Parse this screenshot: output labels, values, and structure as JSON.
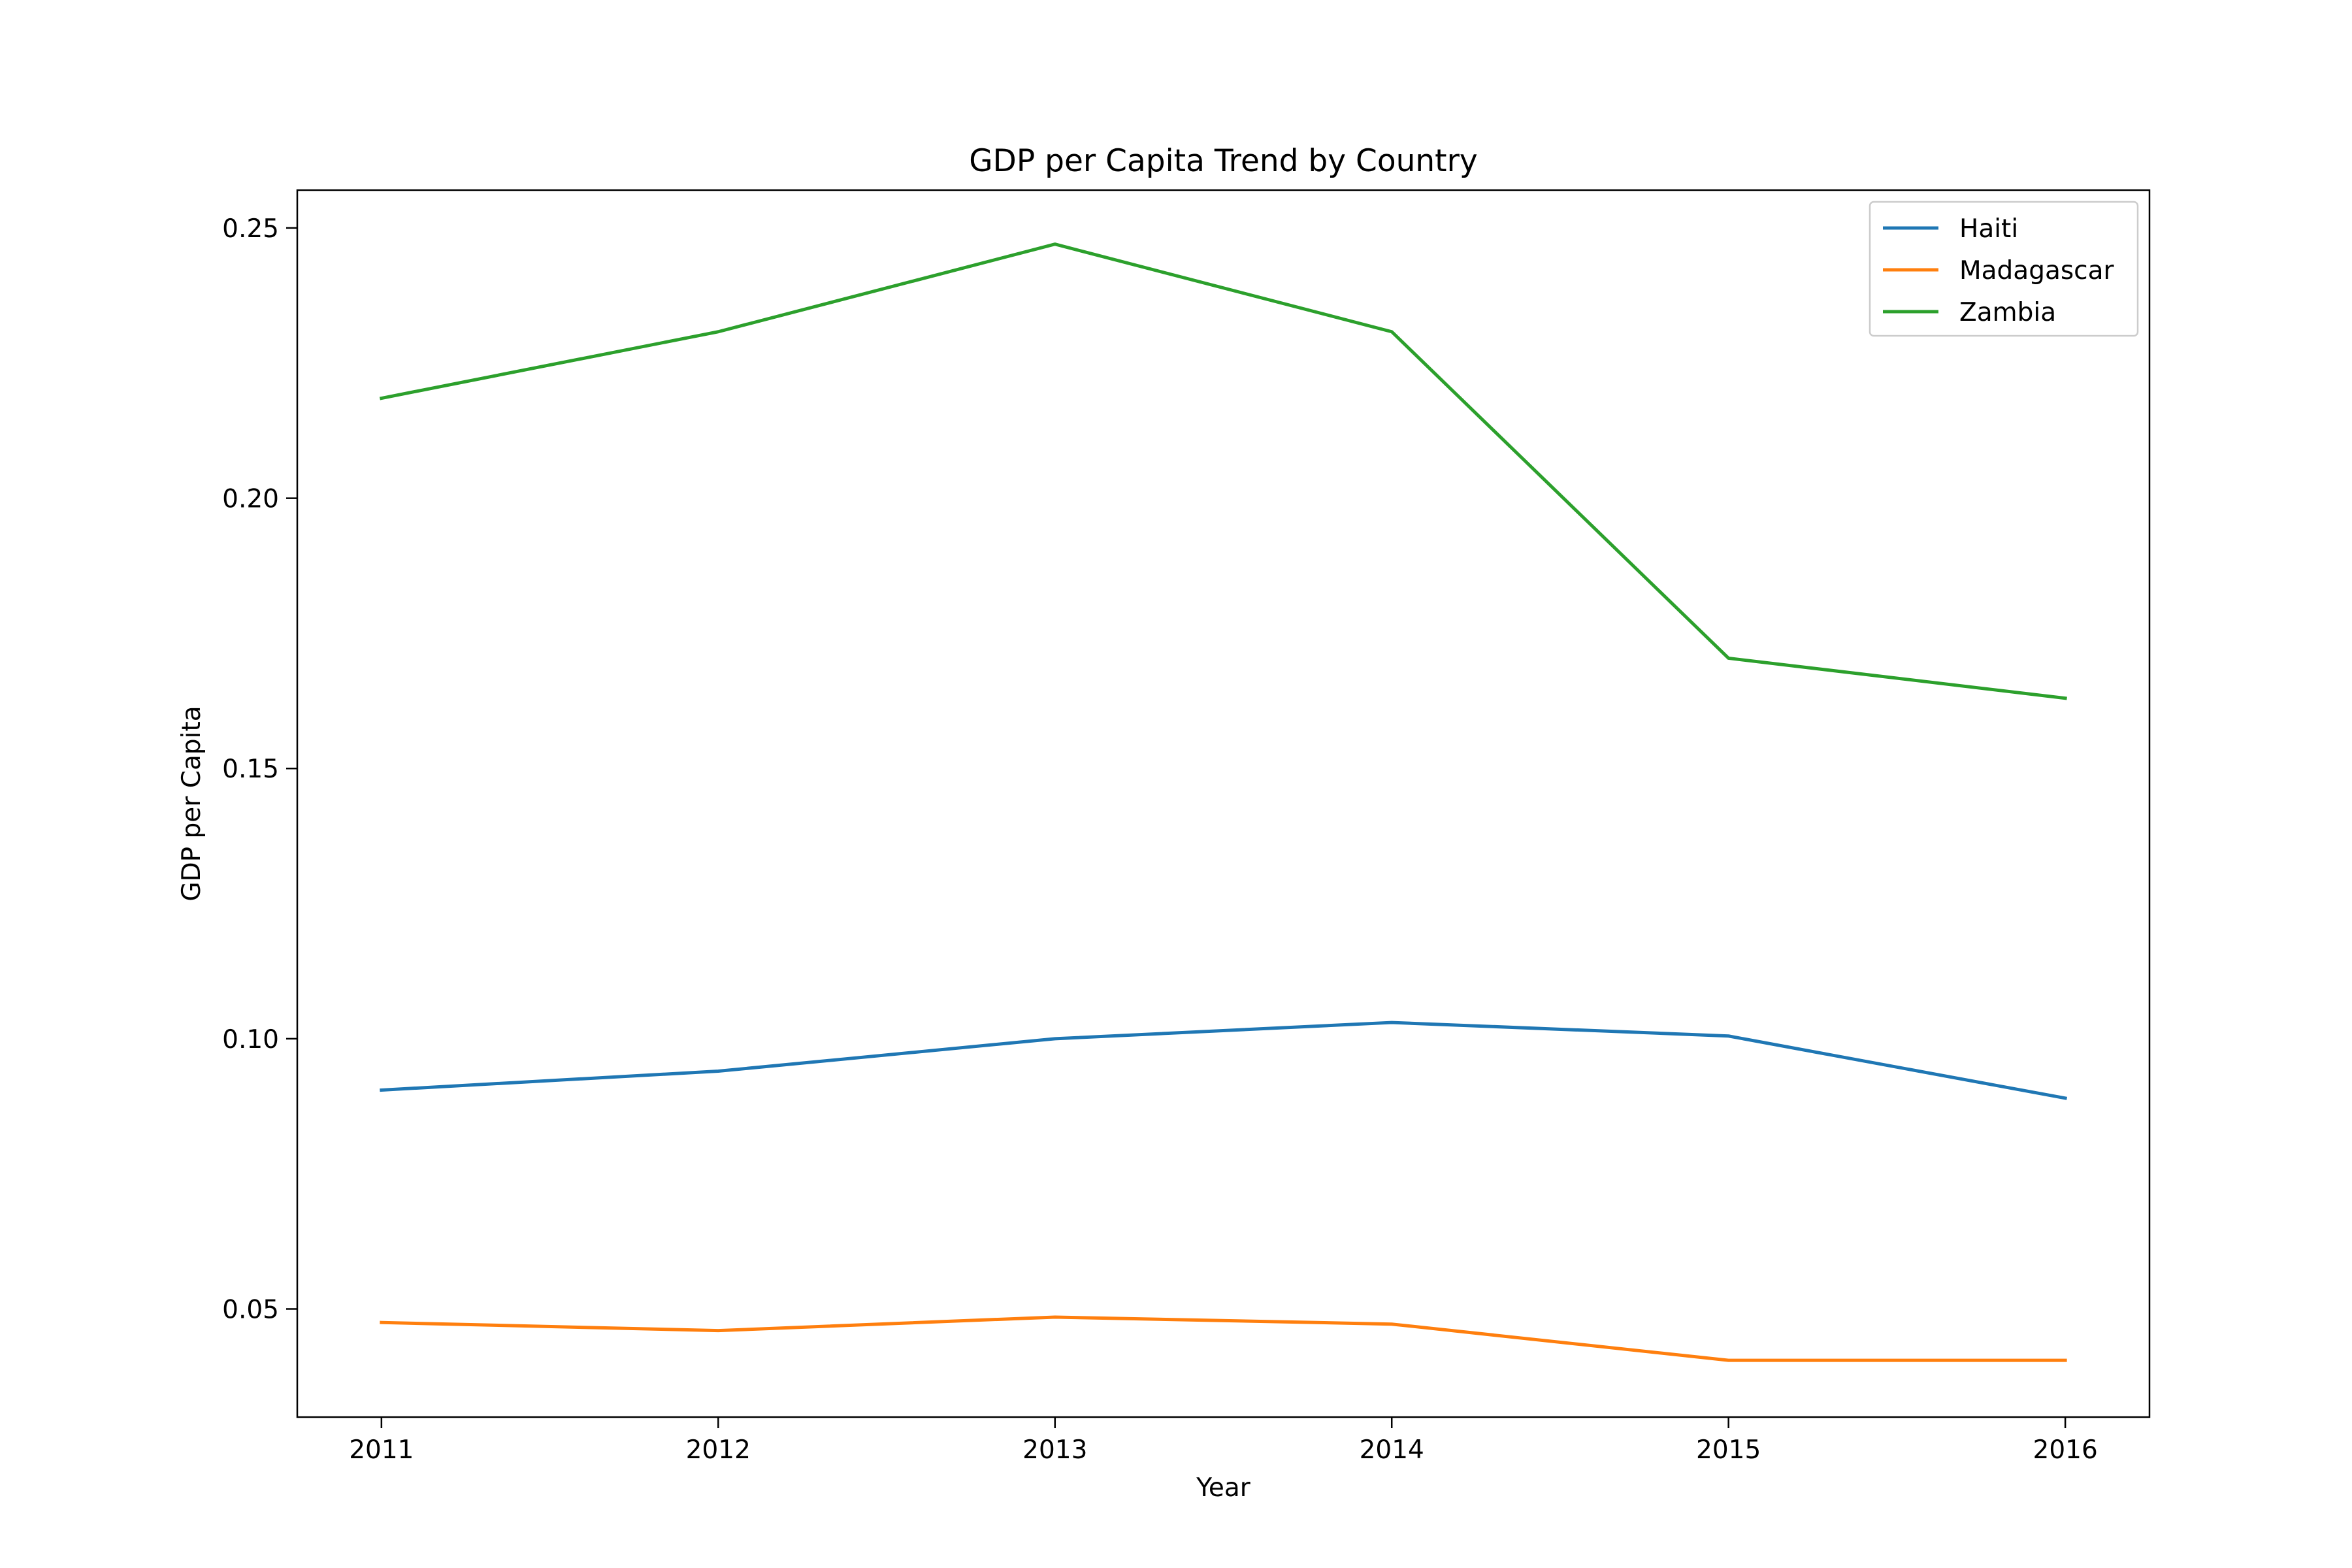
{
  "chart_data": {
    "type": "line",
    "title": "GDP per Capita Trend by Country",
    "xlabel": "Year",
    "ylabel": "GDP per Capita",
    "x": [
      2011,
      2012,
      2013,
      2014,
      2015,
      2016
    ],
    "x_tick_labels": [
      "2011",
      "2012",
      "2013",
      "2014",
      "2015",
      "2016"
    ],
    "y_ticks": [
      0.05,
      0.1,
      0.15,
      0.2,
      0.25
    ],
    "y_tick_labels": [
      "0.05",
      "0.10",
      "0.15",
      "0.20",
      "0.25"
    ],
    "xlim": [
      2010.75,
      2016.25
    ],
    "ylim": [
      0.03,
      0.257
    ],
    "grid": false,
    "legend_position": "top-right",
    "series": [
      {
        "name": "Haiti",
        "color": "#1f77b4",
        "values": [
          0.0905,
          0.094,
          0.1,
          0.103,
          0.1005,
          0.089
        ]
      },
      {
        "name": "Madagascar",
        "color": "#ff7f0e",
        "values": [
          0.0475,
          0.046,
          0.0485,
          0.0472,
          0.0405,
          0.0405
        ]
      },
      {
        "name": "Zambia",
        "color": "#2ca02c",
        "values": [
          0.2185,
          0.2308,
          0.247,
          0.2308,
          0.1704,
          0.163
        ]
      }
    ]
  }
}
